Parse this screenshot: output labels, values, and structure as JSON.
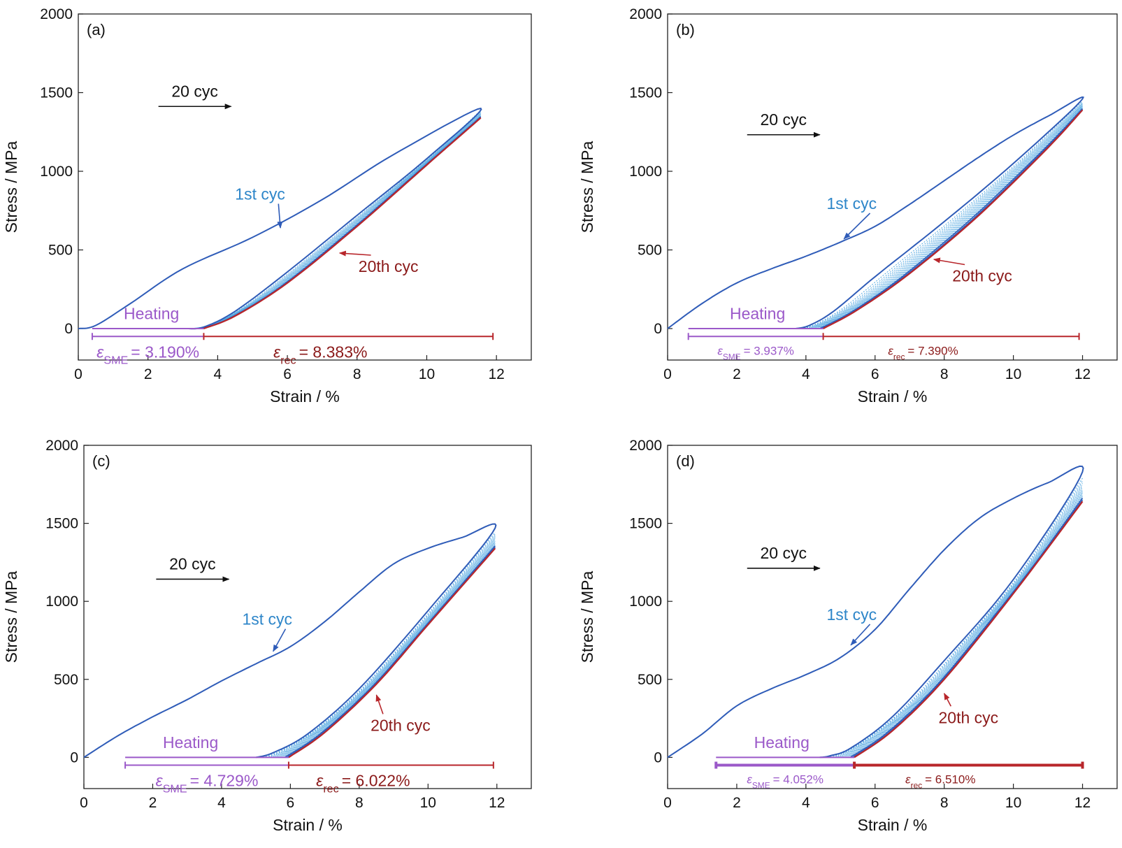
{
  "colors": {
    "first": "#2f5cb8",
    "mid": "#4aa3df",
    "last": "#b8262b",
    "heating": "#9b59c9",
    "arrow": "#111111",
    "label_first": "#2e86c9",
    "label_last": "#8b1a1a"
  },
  "chart_data": [
    {
      "type": "line",
      "panel": "(a)",
      "xlabel": "Strain / %",
      "ylabel": "Stress / MPa",
      "xlim": [
        0,
        13
      ],
      "ylim": [
        -200,
        2000
      ],
      "xticks": [
        "0",
        "2",
        "4",
        "6",
        "8",
        "10",
        "12"
      ],
      "yticks": [
        "0",
        "500",
        "1000",
        "1500",
        "2000"
      ],
      "series": [
        {
          "name": "1st cyc",
          "x": [
            0,
            0.5,
            1.5,
            3,
            5,
            7,
            9,
            11.55,
            10,
            8,
            6,
            4.5,
            3.6,
            3.1
          ],
          "y": [
            0,
            20,
            160,
            380,
            580,
            820,
            1100,
            1400,
            1080,
            720,
            360,
            110,
            10,
            0
          ]
        },
        {
          "name": "20th cyc",
          "x": [
            3.6,
            4.5,
            6,
            8,
            10,
            11.55
          ],
          "y": [
            0,
            80,
            290,
            650,
            1040,
            1340
          ]
        }
      ],
      "annotations": {
        "cycles": "20 cyc",
        "first": "1st cyc",
        "last": "20th cyc",
        "heating": "Heating",
        "sme_text": "= 3.190%",
        "rec_text": "= 8.383%"
      },
      "strain_sme": [
        0.4,
        3.6
      ],
      "strain_rec": [
        3.6,
        11.9
      ]
    },
    {
      "type": "line",
      "panel": "(b)",
      "xlabel": "Strain / %",
      "ylabel": "Stress / MPa",
      "xlim": [
        0,
        13
      ],
      "ylim": [
        -200,
        2000
      ],
      "xticks": [
        "0",
        "2",
        "4",
        "6",
        "8",
        "10",
        "12"
      ],
      "yticks": [
        "0",
        "500",
        "1000",
        "1500",
        "2000"
      ],
      "series": [
        {
          "name": "1st cyc",
          "x": [
            0,
            1,
            2,
            3,
            4,
            5,
            6,
            7,
            8,
            9,
            10,
            11,
            12,
            10,
            8,
            6,
            4.8,
            4.1,
            3.7
          ],
          "y": [
            0,
            160,
            290,
            380,
            460,
            550,
            650,
            790,
            940,
            1090,
            1230,
            1350,
            1460,
            1050,
            680,
            330,
            110,
            20,
            0
          ]
        },
        {
          "name": "20th cyc",
          "x": [
            4.5,
            5.5,
            7,
            9,
            11,
            12
          ],
          "y": [
            0,
            120,
            350,
            720,
            1150,
            1390
          ]
        }
      ],
      "annotations": {
        "cycles": "20 cyc",
        "first": "1st cyc",
        "last": "20th cyc",
        "heating": "Heating",
        "sme_text": "= 3.937%",
        "rec_text": "= 7.390%"
      },
      "strain_sme": [
        0.6,
        4.5
      ],
      "strain_rec": [
        4.5,
        11.9
      ]
    },
    {
      "type": "line",
      "panel": "(c)",
      "xlabel": "Strain / %",
      "ylabel": "Stress / MPa",
      "xlim": [
        0,
        13
      ],
      "ylim": [
        -200,
        2000
      ],
      "xticks": [
        "0",
        "2",
        "4",
        "6",
        "8",
        "10",
        "12"
      ],
      "yticks": [
        "0",
        "500",
        "1000",
        "1500",
        "2000"
      ],
      "series": [
        {
          "name": "1st cyc",
          "x": [
            0,
            1,
            2,
            3,
            4,
            5,
            6,
            7,
            8,
            9,
            10,
            11,
            11.95,
            10,
            8,
            6.5,
            5.5,
            5
          ],
          "y": [
            0,
            140,
            260,
            370,
            490,
            600,
            710,
            870,
            1060,
            1240,
            1340,
            1410,
            1470,
            940,
            440,
            150,
            30,
            0
          ]
        },
        {
          "name": "20th cyc",
          "x": [
            5.95,
            7,
            8.5,
            10,
            11.95
          ],
          "y": [
            0,
            160,
            470,
            850,
            1340
          ]
        }
      ],
      "annotations": {
        "cycles": "20 cyc",
        "first": "1st cyc",
        "last": "20th cyc",
        "heating": "Heating",
        "sme_text": "= 4.729%",
        "rec_text": "= 6.022%"
      },
      "strain_sme": [
        1.2,
        5.95
      ],
      "strain_rec": [
        5.95,
        11.9
      ]
    },
    {
      "type": "line",
      "panel": "(d)",
      "xlabel": "Strain / %",
      "ylabel": "Stress / MPa",
      "xlim": [
        0,
        13
      ],
      "ylim": [
        -200,
        2000
      ],
      "xticks": [
        "0",
        "2",
        "4",
        "6",
        "8",
        "10",
        "12"
      ],
      "yticks": [
        "0",
        "500",
        "1000",
        "1500",
        "2000"
      ],
      "series": [
        {
          "name": "1st cyc",
          "x": [
            0,
            1,
            2,
            3,
            4,
            5,
            6,
            7,
            8,
            9,
            10,
            11,
            12,
            10,
            8,
            6.5,
            5.3,
            4.7,
            4.4
          ],
          "y": [
            0,
            150,
            330,
            440,
            530,
            640,
            820,
            1080,
            1330,
            1530,
            1660,
            1760,
            1830,
            1140,
            620,
            260,
            60,
            10,
            0
          ]
        },
        {
          "name": "20th cyc",
          "x": [
            5.4,
            6.5,
            8,
            10,
            12
          ],
          "y": [
            0,
            170,
            500,
            1050,
            1640
          ]
        }
      ],
      "annotations": {
        "cycles": "20 cyc",
        "first": "1st cyc",
        "last": "20th cyc",
        "heating": "Heating",
        "sme_text": "= 4.052%",
        "rec_text": "= 6.510%"
      },
      "strain_sme": [
        1.4,
        5.4
      ],
      "strain_rec": [
        5.4,
        12.0
      ]
    }
  ],
  "legend_symbols": {
    "epsilon": "ε",
    "sme_sub": "SME",
    "rec_sub": "rec"
  }
}
